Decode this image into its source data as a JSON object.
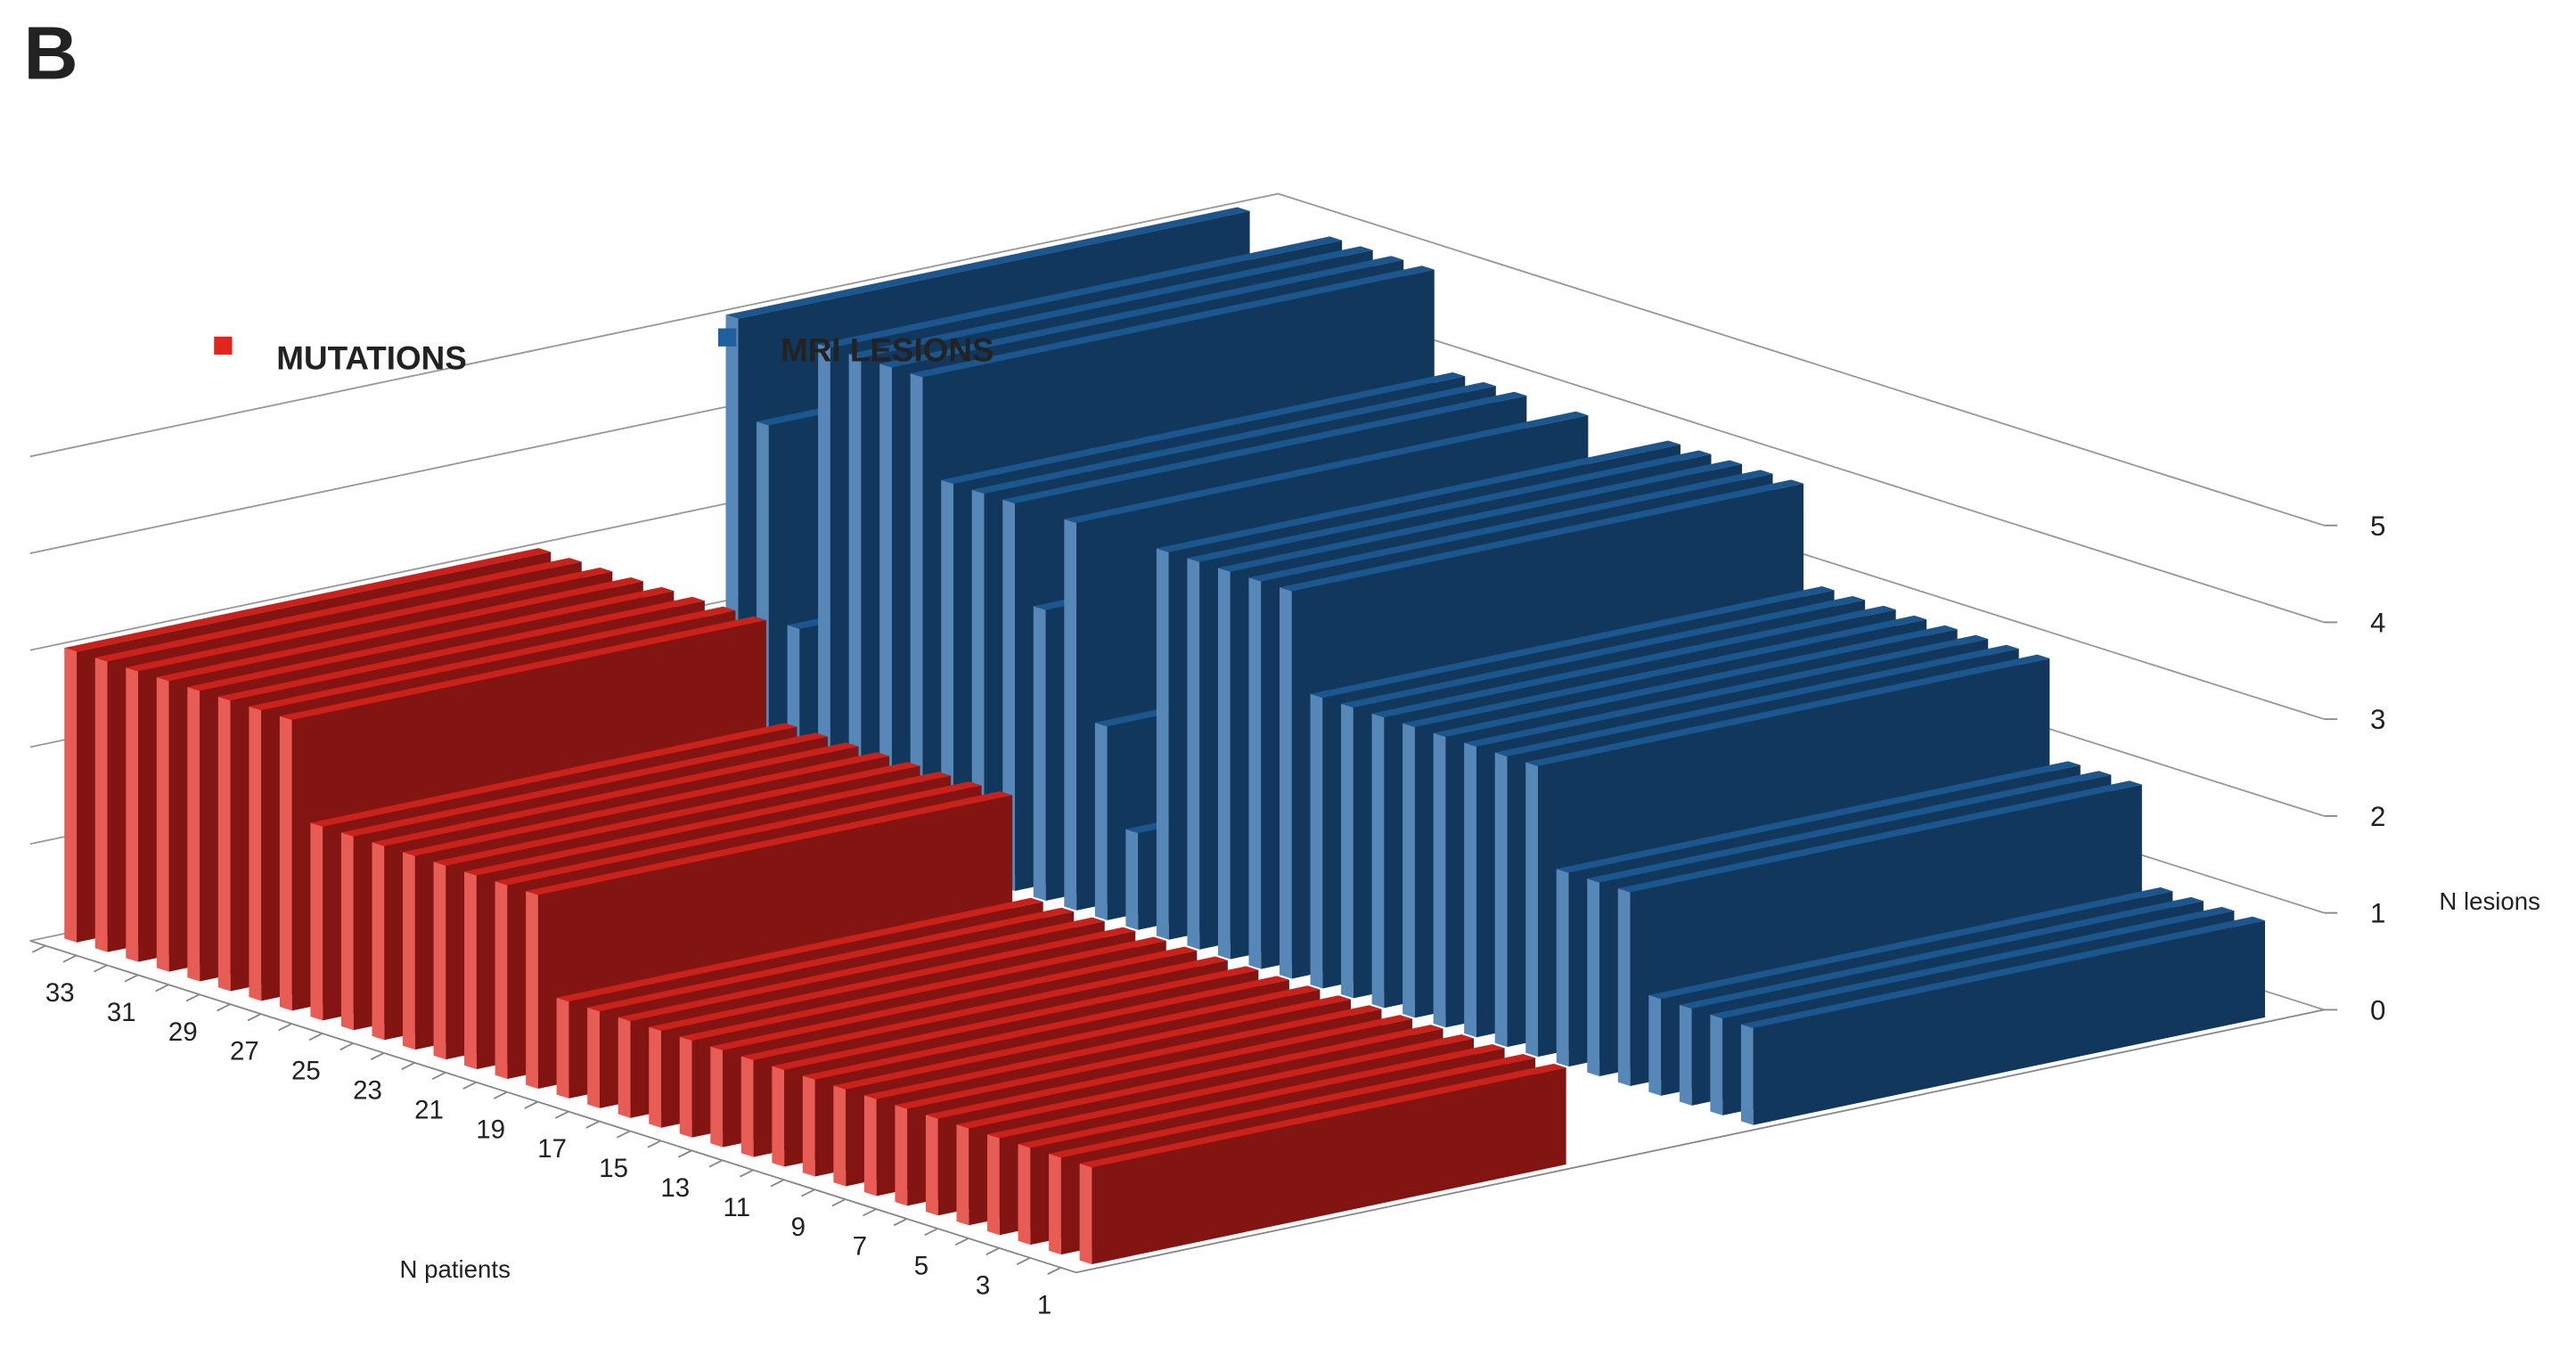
{
  "panel_label": "B",
  "chart_data": {
    "type": "bar3d",
    "x_label": "N patients",
    "y_label": "N lesions",
    "categories": [
      "1",
      null,
      "3",
      null,
      "5",
      null,
      "7",
      null,
      "9",
      null,
      "11",
      null,
      "13",
      null,
      "15",
      null,
      "17",
      null,
      "19",
      null,
      "21",
      null,
      "23",
      null,
      "25",
      null,
      "27",
      null,
      "29",
      null,
      "31",
      null,
      "33",
      null
    ],
    "series": [
      {
        "name": "MUTATIONS",
        "color": "#e0251d",
        "values": [
          1,
          1,
          1,
          1,
          1,
          1,
          1,
          1,
          1,
          1,
          1,
          1,
          1,
          1,
          1,
          1,
          1,
          1,
          2,
          2,
          2,
          2,
          2,
          2,
          2,
          2,
          3,
          3,
          3,
          3,
          3,
          3,
          3,
          3
        ]
      },
      {
        "name": "MRI LESIONS",
        "color": "#1f5f9e",
        "values": [
          1,
          1,
          1,
          1,
          2,
          2,
          2,
          3,
          3,
          3,
          3,
          3,
          3,
          3,
          3,
          4,
          4,
          4,
          4,
          4,
          1,
          2,
          4,
          3,
          4,
          4,
          4,
          5,
          5,
          5,
          5,
          2,
          4,
          5
        ]
      }
    ],
    "ylim": [
      0,
      5
    ],
    "yticks": [
      0,
      1,
      2,
      3,
      4,
      5
    ],
    "grid": true
  }
}
